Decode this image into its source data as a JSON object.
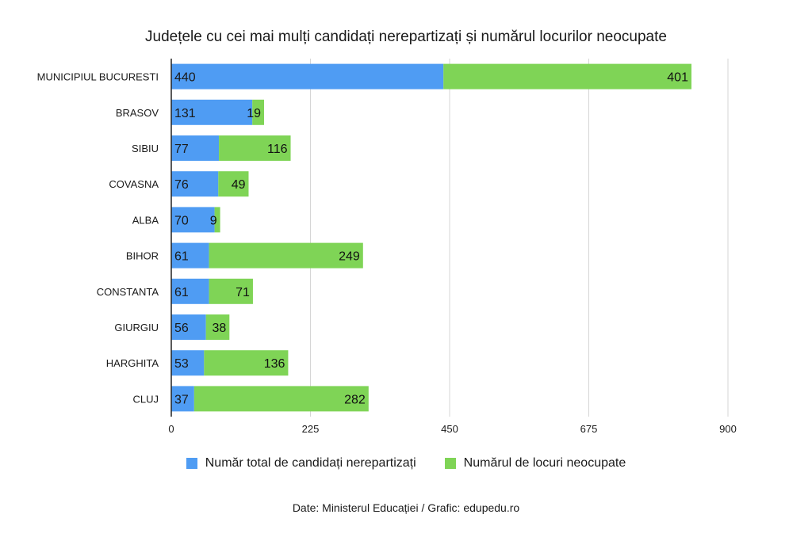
{
  "colors": {
    "series1": "#4f9cf3",
    "series2": "#7fd456",
    "grid": "#d6d6d6",
    "axis": "#222222"
  },
  "chart_data": {
    "type": "bar",
    "orientation": "horizontal",
    "stacked": true,
    "title": "Județele cu cei mai mulți candidați nerepartizați și numărul locurilor neocupate",
    "categories": [
      "MUNICIPIUL BUCURESTI",
      "BRASOV",
      "SIBIU",
      "COVASNA",
      "ALBA",
      "BIHOR",
      "CONSTANTA",
      "GIURGIU",
      "HARGHITA",
      "CLUJ"
    ],
    "series": [
      {
        "name": "Număr total de candidați nerepartizați",
        "values": [
          440,
          131,
          77,
          76,
          70,
          61,
          61,
          56,
          53,
          37
        ]
      },
      {
        "name": "Numărul de locuri neocupate",
        "values": [
          401,
          19,
          116,
          49,
          9,
          249,
          71,
          38,
          136,
          282
        ]
      }
    ],
    "xlim": [
      0,
      900
    ],
    "xticks": [
      "0",
      "225",
      "450",
      "675",
      "900"
    ],
    "grid": "vertical",
    "legend": "bottom",
    "source": "Date: Ministerul Educației / Grafic: edupedu.ro"
  }
}
